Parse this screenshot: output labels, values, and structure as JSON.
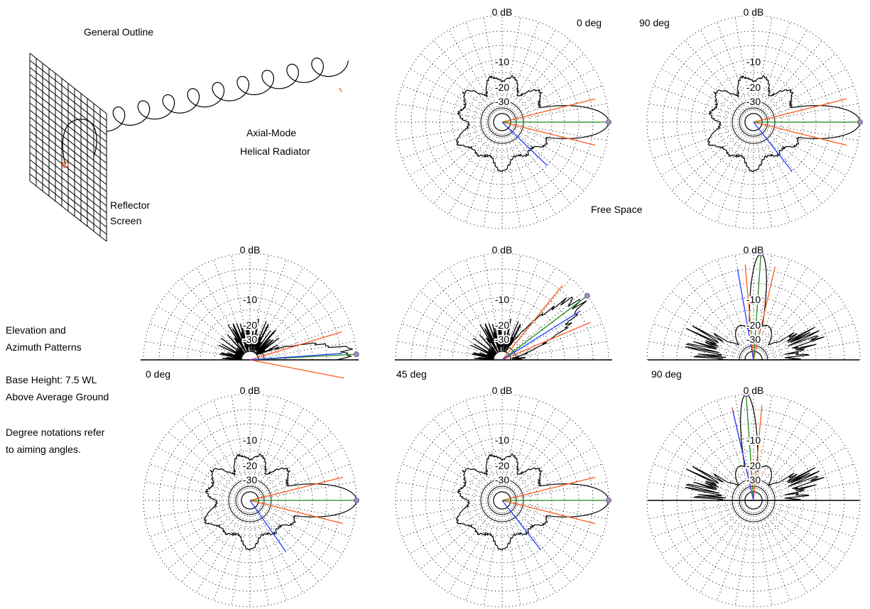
{
  "outline": {
    "title": "General Outline",
    "radiator": [
      "Axial-Mode",
      "Helical Radiator"
    ],
    "reflector": [
      "Reflector",
      "Screen"
    ]
  },
  "free_space": {
    "labels": [
      "0 deg",
      "90 deg"
    ],
    "caption": "Free Space"
  },
  "notes": [
    "Elevation and",
    "Azimuth Patterns",
    "Base Height: 7.5 WL",
    "Above Average Ground",
    "Degree notations refer",
    "to aiming angles."
  ],
  "elevation_labels": [
    "0 deg",
    "45 deg",
    "90 deg"
  ],
  "scale_labels": [
    "0 dB",
    "-10",
    "-20",
    "-30"
  ]
}
